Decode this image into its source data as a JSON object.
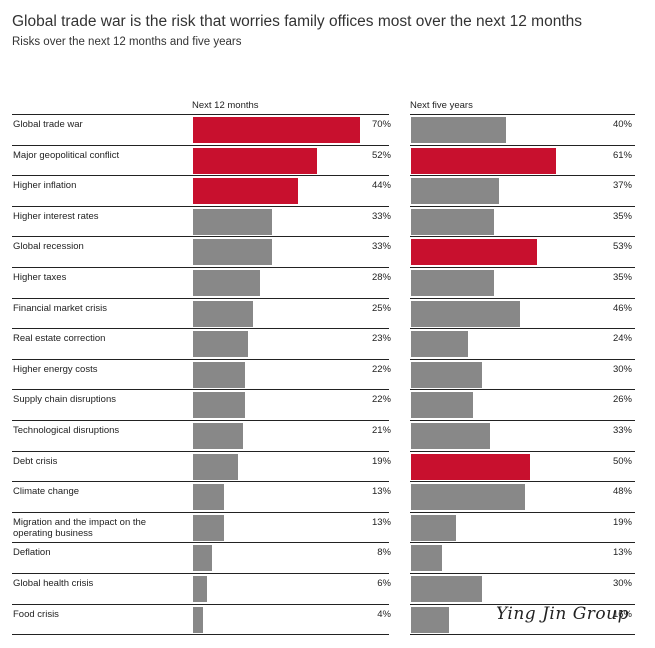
{
  "title": "Global trade war is the risk that worries family offices most over the next 12 months",
  "subtitle": "Risks over the next 12 months and five years",
  "watermark": "Ying Jin Group",
  "colors": {
    "highlight": "#c8102e",
    "neutral": "#888888",
    "rule": "#222222"
  },
  "chart_data": {
    "type": "bar",
    "orientation": "horizontal",
    "categories": [
      "Global trade war",
      "Major geopolitical conflict",
      "Higher inflation",
      "Higher interest rates",
      "Global recession",
      "Higher taxes",
      "Financial market crisis",
      "Real estate correction",
      "Higher energy costs",
      "Supply chain disruptions",
      "Technological disruptions",
      "Debt crisis",
      "Climate change",
      "Migration and the impact on the operating business",
      "Deflation",
      "Global health crisis",
      "Food crisis"
    ],
    "series": [
      {
        "name": "Next 12 months",
        "values": [
          70,
          52,
          44,
          33,
          33,
          28,
          25,
          23,
          22,
          22,
          21,
          19,
          13,
          13,
          8,
          6,
          4
        ],
        "labels": [
          "70%",
          "52%",
          "44%",
          "33%",
          "33%",
          "28%",
          "25%",
          "23%",
          "22%",
          "22%",
          "21%",
          "19%",
          "13%",
          "13%",
          "8%",
          "6%",
          "4%"
        ],
        "highlighted": [
          true,
          true,
          true,
          false,
          false,
          false,
          false,
          false,
          false,
          false,
          false,
          false,
          false,
          false,
          false,
          false,
          false
        ]
      },
      {
        "name": "Next five years",
        "values": [
          40,
          61,
          37,
          35,
          53,
          35,
          46,
          24,
          30,
          26,
          33,
          50,
          48,
          19,
          13,
          30,
          16
        ],
        "labels": [
          "40%",
          "61%",
          "37%",
          "35%",
          "53%",
          "35%",
          "46%",
          "24%",
          "30%",
          "26%",
          "33%",
          "50%",
          "48%",
          "19%",
          "13%",
          "30%",
          "16%"
        ],
        "highlighted": [
          false,
          true,
          false,
          false,
          true,
          false,
          false,
          false,
          false,
          false,
          false,
          true,
          false,
          false,
          false,
          false,
          false
        ]
      }
    ],
    "xlim": [
      0,
      100
    ],
    "grid": false,
    "legend": "none"
  }
}
